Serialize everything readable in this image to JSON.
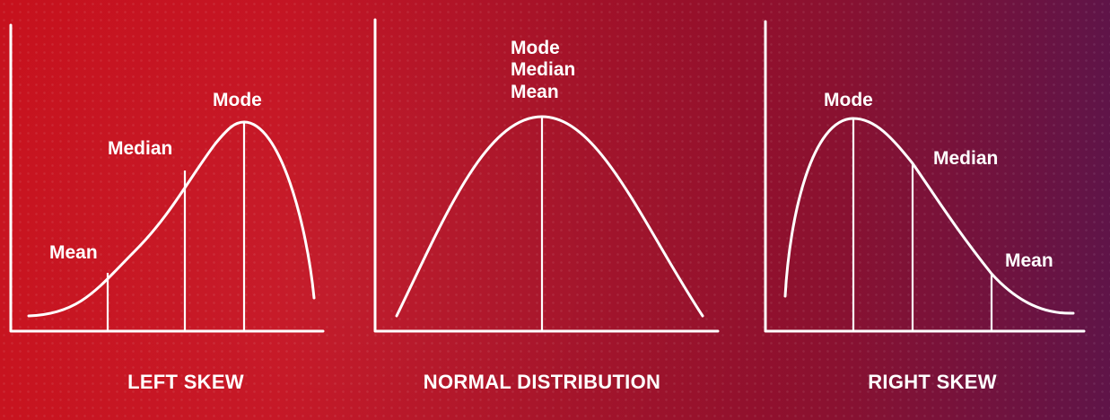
{
  "panels": {
    "left": {
      "caption": "LEFT SKEW",
      "labels": {
        "mode": "Mode",
        "median": "Median",
        "mean": "Mean"
      }
    },
    "normal": {
      "caption": "NORMAL DISTRIBUTION",
      "labels": {
        "mode": "Mode",
        "median": "Median",
        "mean": "Mean"
      }
    },
    "right": {
      "caption": "RIGHT SKEW",
      "labels": {
        "mode": "Mode",
        "median": "Median",
        "mean": "Mean"
      }
    }
  }
}
